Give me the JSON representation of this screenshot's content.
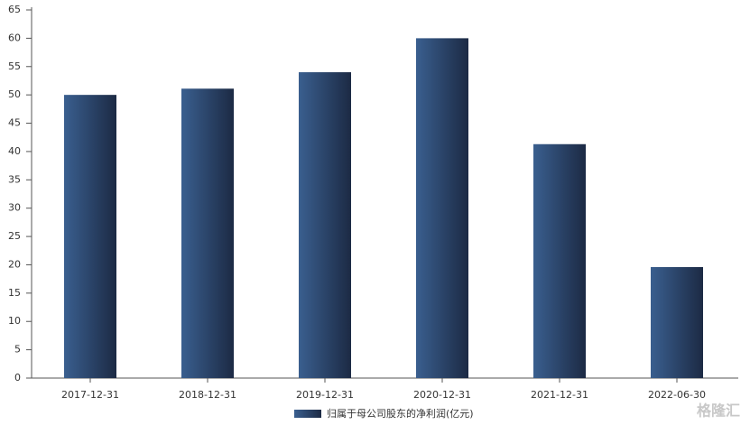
{
  "chart_data": {
    "type": "bar",
    "categories": [
      "2017-12-31",
      "2018-12-31",
      "2019-12-31",
      "2020-12-31",
      "2021-12-31",
      "2022-06-30"
    ],
    "series": [
      {
        "name": "归属于母公司股东的净利润(亿元)",
        "color": "#3a5f8f",
        "values": [
          50.0,
          51.1,
          54.0,
          60.0,
          41.3,
          19.6
        ]
      }
    ],
    "ylim": [
      0,
      65
    ],
    "yticks": [
      0,
      5,
      10,
      15,
      20,
      25,
      30,
      35,
      40,
      45,
      50,
      55,
      60,
      65
    ],
    "grid": false,
    "legend": "bottom",
    "watermark": "格隆汇"
  }
}
